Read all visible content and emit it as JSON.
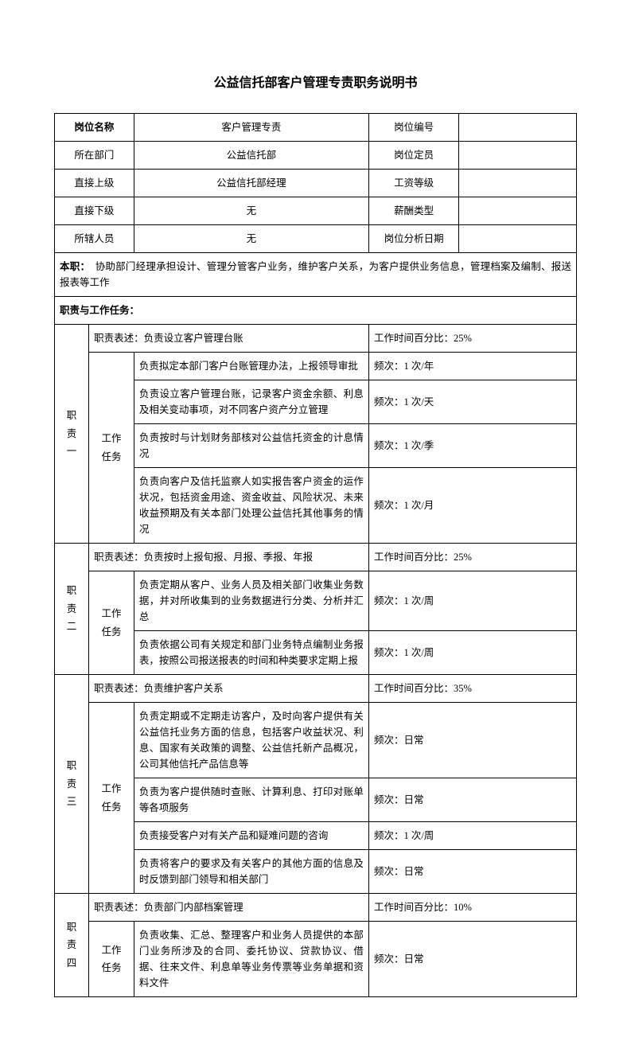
{
  "title": "公益信托部客户管理专责职务说明书",
  "header": {
    "rows": [
      {
        "l1": "岗位名称",
        "v1": "客户管理专责",
        "l2": "岗位编号",
        "v2": "",
        "boldL1": true
      },
      {
        "l1": "所在部门",
        "v1": "公益信托部",
        "l2": "岗位定员",
        "v2": ""
      },
      {
        "l1": "直接上级",
        "v1": "公益信托部经理",
        "l2": "工资等级",
        "v2": ""
      },
      {
        "l1": "直接下级",
        "v1": "无",
        "l2": "薪酬类型",
        "v2": ""
      },
      {
        "l1": "所辖人员",
        "v1": "无",
        "l2": "岗位分析日期",
        "v2": ""
      }
    ]
  },
  "mainDuty": {
    "label": "本职：",
    "text": "协助部门经理承担设计、管理分管客户业务，维护客户关系，为客户提供业务信息，管理档案及编制、报送报表等工作"
  },
  "respHeader": "职责与工作任务：",
  "descLabel": "职责表述：",
  "taskLabel": "工作任务",
  "timeLabel": "工作时间百分比：",
  "freqLabel": "频次：",
  "duties": [
    {
      "name": "职责一",
      "desc": "负责设立客户管理台账",
      "time": "25%",
      "tasks": [
        {
          "t": "负责拟定本部门客户台账管理办法，上报领导审批",
          "f": "1 次/年"
        },
        {
          "t": "负责设立客户管理台账，记录客户资金余额、利息及相关变动事项，对不同客户资产分立管理",
          "f": "1 次/天"
        },
        {
          "t": "负责按时与计划财务部核对公益信托资金的计息情况",
          "f": "1 次/季"
        },
        {
          "t": "负责向客户及信托监察人如实报告客户资金的运作状况，包括资金用途、资金收益、风险状况、未来收益预期及有关本部门处理公益信托其他事务的情况",
          "f": "1 次/月"
        }
      ]
    },
    {
      "name": "职责二",
      "desc": "负责按时上报旬报、月报、季报、年报",
      "time": "25%",
      "tasks": [
        {
          "t": "负责定期从客户、业务人员及相关部门收集业务数据，并对所收集到的业务数据进行分类、分析并汇总",
          "f": "1 次/周"
        },
        {
          "t": "负责依据公司有关规定和部门业务特点编制业务报表，按照公司报送报表的时间和种类要求定期上报",
          "f": "1 次/周"
        }
      ]
    },
    {
      "name": "职责三",
      "desc": "负责维护客户关系",
      "time": "35%",
      "tasks": [
        {
          "t": "负责定期或不定期走访客户，及时向客户提供有关公益信托业务方面的信息，包括客户收益状况、利息、国家有关政策的调整、公益信托新产品概况，公司其他信托产品信息等",
          "f": "日常"
        },
        {
          "t": "负责为客户提供随时查账、计算利息、打印对账单等各项服务",
          "f": "日常"
        },
        {
          "t": "负责接受客户对有关产品和疑难问题的咨询",
          "f": "1 次/周"
        },
        {
          "t": "负责将客户的要求及有关客户的其他方面的信息及时反馈到部门领导和相关部门",
          "f": "日常"
        }
      ]
    },
    {
      "name": "职责四",
      "desc": "负责部门内部档案管理",
      "time": "10%",
      "tasks": [
        {
          "t": "负责收集、汇总、整理客户和业务人员提供的本部门业务所涉及的合同、委托协议、贷款协议、借据、往来文件、利息单等业务传票等业务单据和资料文件",
          "f": "日常"
        }
      ]
    }
  ]
}
